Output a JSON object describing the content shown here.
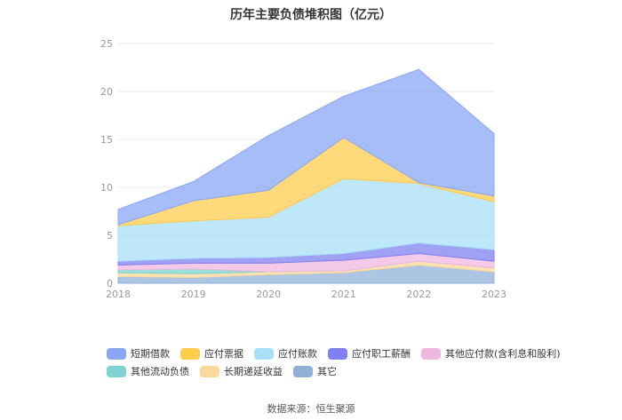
{
  "chart_data": {
    "type": "area",
    "title": "历年主要负债堆积图（亿元）",
    "x": [
      "2018",
      "2019",
      "2020",
      "2021",
      "2022",
      "2023"
    ],
    "ylim": [
      0,
      25
    ],
    "yticks": [
      "0",
      "5",
      "10",
      "15",
      "20",
      "25"
    ],
    "stacked": true,
    "grid": true,
    "legend_position": "bottom",
    "series": [
      {
        "name": "其它",
        "color": "#8fb1d9",
        "values": [
          0.7,
          0.6,
          0.9,
          1.1,
          1.9,
          1.2
        ]
      },
      {
        "name": "长期递延收益",
        "color": "#fcd99b",
        "values": [
          0.4,
          0.4,
          0.3,
          0.2,
          0.4,
          0.4
        ]
      },
      {
        "name": "其他流动负债",
        "color": "#7dd3cf",
        "values": [
          0.3,
          0.5,
          0.0,
          0.0,
          0.0,
          0.0
        ]
      },
      {
        "name": "其他应付款(含利息和股利)",
        "color": "#f0b8e0",
        "values": [
          0.5,
          0.6,
          0.9,
          1.1,
          0.8,
          0.7
        ]
      },
      {
        "name": "应付职工薪酬",
        "color": "#8080f0",
        "values": [
          0.4,
          0.5,
          0.6,
          0.7,
          1.1,
          1.2
        ]
      },
      {
        "name": "应付账款",
        "color": "#a8e0f8",
        "values": [
          3.7,
          3.9,
          4.2,
          7.8,
          6.2,
          5.0
        ]
      },
      {
        "name": "应付票据",
        "color": "#ffcc4d",
        "values": [
          0.1,
          2.1,
          2.8,
          4.3,
          0.1,
          0.6
        ]
      },
      {
        "name": "短期借款",
        "color": "#8aa7f5",
        "values": [
          1.6,
          2.0,
          5.7,
          4.3,
          11.8,
          6.5
        ]
      }
    ]
  },
  "legend": {
    "row1": [
      "短期借款",
      "应付票据",
      "应付账款",
      "应付职工薪酬",
      "其他应付款(含利息和股利)"
    ],
    "row2": [
      "其他流动负债",
      "长期递延收益",
      "其它"
    ]
  },
  "colors": {
    "短期借款": "#8aa7f5",
    "应付票据": "#ffcc4d",
    "应付账款": "#a8e0f8",
    "应付职工薪酬": "#8080f0",
    "其他应付款(含利息和股利)": "#f0b8e0",
    "其他流动负债": "#7dd3cf",
    "长期递延收益": "#fcd99b",
    "其它": "#8fb1d9"
  },
  "source": "数据来源：恒生聚源"
}
